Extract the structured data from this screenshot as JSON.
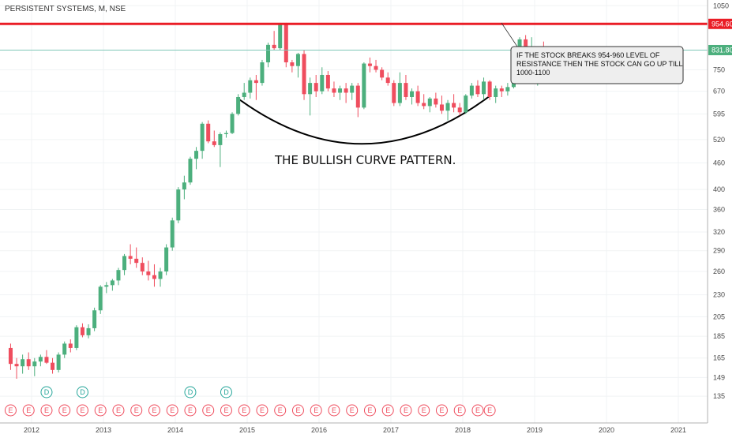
{
  "chart_data": {
    "type": "candlestick",
    "title": "PERSISTENT SYSTEMS, M, NSE",
    "x_ticks": [
      "2012",
      "2013",
      "2014",
      "2015",
      "2016",
      "2017",
      "2018",
      "2019",
      "2020",
      "2021"
    ],
    "y_ticks": [
      1050,
      954.6,
      831.8,
      750,
      670,
      595,
      520,
      460,
      400,
      360,
      320,
      290,
      260,
      230,
      205,
      185,
      165,
      149,
      135
    ],
    "y_scale": "log",
    "ylim": [
      128,
      1060
    ],
    "x_start": "2011-09",
    "resistance_level": 954.6,
    "resistance_label": "954.60",
    "current_price": 831.8,
    "current_price_label": "831.80",
    "up_color": "#4caf7d",
    "down_color": "#ef4d5e",
    "resistance_color": "#ea1d26",
    "candles": [
      {
        "o": 174,
        "h": 178,
        "l": 155,
        "c": 160
      },
      {
        "o": 160,
        "h": 165,
        "l": 148,
        "c": 158
      },
      {
        "o": 158,
        "h": 168,
        "l": 152,
        "c": 164
      },
      {
        "o": 164,
        "h": 170,
        "l": 155,
        "c": 158
      },
      {
        "o": 158,
        "h": 165,
        "l": 150,
        "c": 162
      },
      {
        "o": 162,
        "h": 168,
        "l": 158,
        "c": 166
      },
      {
        "o": 166,
        "h": 172,
        "l": 160,
        "c": 161
      },
      {
        "o": 161,
        "h": 165,
        "l": 152,
        "c": 155
      },
      {
        "o": 155,
        "h": 170,
        "l": 153,
        "c": 168
      },
      {
        "o": 168,
        "h": 180,
        "l": 165,
        "c": 178
      },
      {
        "o": 178,
        "h": 182,
        "l": 170,
        "c": 174
      },
      {
        "o": 174,
        "h": 196,
        "l": 172,
        "c": 194
      },
      {
        "o": 194,
        "h": 198,
        "l": 184,
        "c": 186
      },
      {
        "o": 186,
        "h": 197,
        "l": 183,
        "c": 193
      },
      {
        "o": 193,
        "h": 215,
        "l": 190,
        "c": 212
      },
      {
        "o": 212,
        "h": 242,
        "l": 208,
        "c": 240
      },
      {
        "o": 240,
        "h": 246,
        "l": 232,
        "c": 242
      },
      {
        "o": 242,
        "h": 250,
        "l": 235,
        "c": 248
      },
      {
        "o": 248,
        "h": 265,
        "l": 242,
        "c": 262
      },
      {
        "o": 262,
        "h": 285,
        "l": 255,
        "c": 282
      },
      {
        "o": 282,
        "h": 300,
        "l": 270,
        "c": 278
      },
      {
        "o": 278,
        "h": 295,
        "l": 265,
        "c": 272
      },
      {
        "o": 272,
        "h": 280,
        "l": 255,
        "c": 260
      },
      {
        "o": 260,
        "h": 275,
        "l": 248,
        "c": 255
      },
      {
        "o": 255,
        "h": 270,
        "l": 240,
        "c": 250
      },
      {
        "o": 250,
        "h": 265,
        "l": 240,
        "c": 260
      },
      {
        "o": 260,
        "h": 300,
        "l": 255,
        "c": 295
      },
      {
        "o": 295,
        "h": 345,
        "l": 290,
        "c": 340
      },
      {
        "o": 340,
        "h": 405,
        "l": 335,
        "c": 400
      },
      {
        "o": 400,
        "h": 430,
        "l": 380,
        "c": 415
      },
      {
        "o": 415,
        "h": 475,
        "l": 410,
        "c": 470
      },
      {
        "o": 470,
        "h": 500,
        "l": 445,
        "c": 490
      },
      {
        "o": 490,
        "h": 570,
        "l": 470,
        "c": 565
      },
      {
        "o": 565,
        "h": 575,
        "l": 510,
        "c": 515
      },
      {
        "o": 515,
        "h": 545,
        "l": 500,
        "c": 505
      },
      {
        "o": 505,
        "h": 540,
        "l": 450,
        "c": 535
      },
      {
        "o": 535,
        "h": 545,
        "l": 525,
        "c": 538
      },
      {
        "o": 538,
        "h": 600,
        "l": 535,
        "c": 595
      },
      {
        "o": 595,
        "h": 660,
        "l": 590,
        "c": 650
      },
      {
        "o": 650,
        "h": 700,
        "l": 640,
        "c": 665
      },
      {
        "o": 665,
        "h": 720,
        "l": 645,
        "c": 710
      },
      {
        "o": 710,
        "h": 730,
        "l": 640,
        "c": 700
      },
      {
        "o": 700,
        "h": 790,
        "l": 690,
        "c": 780
      },
      {
        "o": 780,
        "h": 865,
        "l": 760,
        "c": 855
      },
      {
        "o": 855,
        "h": 920,
        "l": 830,
        "c": 840
      },
      {
        "o": 840,
        "h": 960,
        "l": 830,
        "c": 950
      },
      {
        "o": 950,
        "h": 960,
        "l": 760,
        "c": 780
      },
      {
        "o": 780,
        "h": 790,
        "l": 740,
        "c": 765
      },
      {
        "o": 765,
        "h": 820,
        "l": 720,
        "c": 815
      },
      {
        "o": 815,
        "h": 830,
        "l": 640,
        "c": 660
      },
      {
        "o": 660,
        "h": 720,
        "l": 590,
        "c": 700
      },
      {
        "o": 700,
        "h": 730,
        "l": 650,
        "c": 670
      },
      {
        "o": 670,
        "h": 760,
        "l": 660,
        "c": 730
      },
      {
        "o": 730,
        "h": 745,
        "l": 670,
        "c": 680
      },
      {
        "o": 680,
        "h": 705,
        "l": 650,
        "c": 665
      },
      {
        "o": 665,
        "h": 690,
        "l": 640,
        "c": 680
      },
      {
        "o": 680,
        "h": 700,
        "l": 630,
        "c": 665
      },
      {
        "o": 665,
        "h": 700,
        "l": 640,
        "c": 690
      },
      {
        "o": 690,
        "h": 700,
        "l": 585,
        "c": 615
      },
      {
        "o": 615,
        "h": 780,
        "l": 610,
        "c": 775
      },
      {
        "o": 775,
        "h": 800,
        "l": 740,
        "c": 765
      },
      {
        "o": 765,
        "h": 790,
        "l": 740,
        "c": 750
      },
      {
        "o": 750,
        "h": 760,
        "l": 710,
        "c": 720
      },
      {
        "o": 720,
        "h": 740,
        "l": 690,
        "c": 700
      },
      {
        "o": 700,
        "h": 710,
        "l": 620,
        "c": 630
      },
      {
        "o": 630,
        "h": 740,
        "l": 620,
        "c": 700
      },
      {
        "o": 700,
        "h": 730,
        "l": 640,
        "c": 650
      },
      {
        "o": 650,
        "h": 680,
        "l": 625,
        "c": 670
      },
      {
        "o": 670,
        "h": 690,
        "l": 620,
        "c": 630
      },
      {
        "o": 630,
        "h": 660,
        "l": 610,
        "c": 620
      },
      {
        "o": 620,
        "h": 650,
        "l": 600,
        "c": 645
      },
      {
        "o": 645,
        "h": 665,
        "l": 615,
        "c": 625
      },
      {
        "o": 625,
        "h": 655,
        "l": 595,
        "c": 605
      },
      {
        "o": 605,
        "h": 640,
        "l": 575,
        "c": 630
      },
      {
        "o": 630,
        "h": 660,
        "l": 600,
        "c": 615
      },
      {
        "o": 615,
        "h": 630,
        "l": 590,
        "c": 600
      },
      {
        "o": 600,
        "h": 660,
        "l": 595,
        "c": 655
      },
      {
        "o": 655,
        "h": 700,
        "l": 645,
        "c": 690
      },
      {
        "o": 690,
        "h": 710,
        "l": 650,
        "c": 660
      },
      {
        "o": 660,
        "h": 720,
        "l": 640,
        "c": 705
      },
      {
        "o": 705,
        "h": 710,
        "l": 640,
        "c": 650
      },
      {
        "o": 650,
        "h": 690,
        "l": 630,
        "c": 680
      },
      {
        "o": 680,
        "h": 690,
        "l": 650,
        "c": 670
      },
      {
        "o": 670,
        "h": 700,
        "l": 655,
        "c": 685
      },
      {
        "o": 685,
        "h": 780,
        "l": 680,
        "c": 770
      },
      {
        "o": 770,
        "h": 890,
        "l": 760,
        "c": 880
      },
      {
        "o": 880,
        "h": 900,
        "l": 700,
        "c": 720
      },
      {
        "o": 720,
        "h": 890,
        "l": 710,
        "c": 795
      },
      {
        "o": 795,
        "h": 830,
        "l": 690,
        "c": 810
      },
      {
        "o": 810,
        "h": 870,
        "l": 720,
        "c": 790
      },
      {
        "o": 790,
        "h": 840,
        "l": 730,
        "c": 832
      }
    ],
    "events": [
      {
        "date": "2011-09",
        "type": "E"
      },
      {
        "date": "2011-12",
        "type": "E"
      },
      {
        "date": "2012-03",
        "type": "E"
      },
      {
        "date": "2012-06",
        "type": "E"
      },
      {
        "date": "2012-09",
        "type": "E"
      },
      {
        "date": "2012-12",
        "type": "E"
      },
      {
        "date": "2013-03",
        "type": "E"
      },
      {
        "date": "2013-06",
        "type": "E"
      },
      {
        "date": "2013-09",
        "type": "E"
      },
      {
        "date": "2013-12",
        "type": "E"
      },
      {
        "date": "2014-03",
        "type": "E"
      },
      {
        "date": "2014-06",
        "type": "E"
      },
      {
        "date": "2014-09",
        "type": "E"
      },
      {
        "date": "2014-12",
        "type": "E"
      },
      {
        "date": "2015-03",
        "type": "E"
      },
      {
        "date": "2015-06",
        "type": "E"
      },
      {
        "date": "2015-09",
        "type": "E"
      },
      {
        "date": "2015-12",
        "type": "E"
      },
      {
        "date": "2016-03",
        "type": "E"
      },
      {
        "date": "2016-06",
        "type": "E"
      },
      {
        "date": "2016-09",
        "type": "E"
      },
      {
        "date": "2016-12",
        "type": "E"
      },
      {
        "date": "2017-03",
        "type": "E"
      },
      {
        "date": "2017-06",
        "type": "E"
      },
      {
        "date": "2017-09",
        "type": "E"
      },
      {
        "date": "2017-12",
        "type": "E"
      },
      {
        "date": "2018-03",
        "type": "E"
      },
      {
        "date": "2018-05",
        "type": "E"
      },
      {
        "date": "2012-03",
        "type": "D"
      },
      {
        "date": "2012-09",
        "type": "D"
      },
      {
        "date": "2014-03",
        "type": "D"
      },
      {
        "date": "2014-09",
        "type": "D"
      }
    ],
    "curve_label": "THE BULLISH CURVE PATTERN.",
    "annotation": {
      "lines": [
        "IF THE STOCK BREAKS 954-960 LEVEL OF",
        "RESISTANCE THEN THE STOCK CAN GO UP TILL",
        "1000-1100"
      ]
    }
  }
}
